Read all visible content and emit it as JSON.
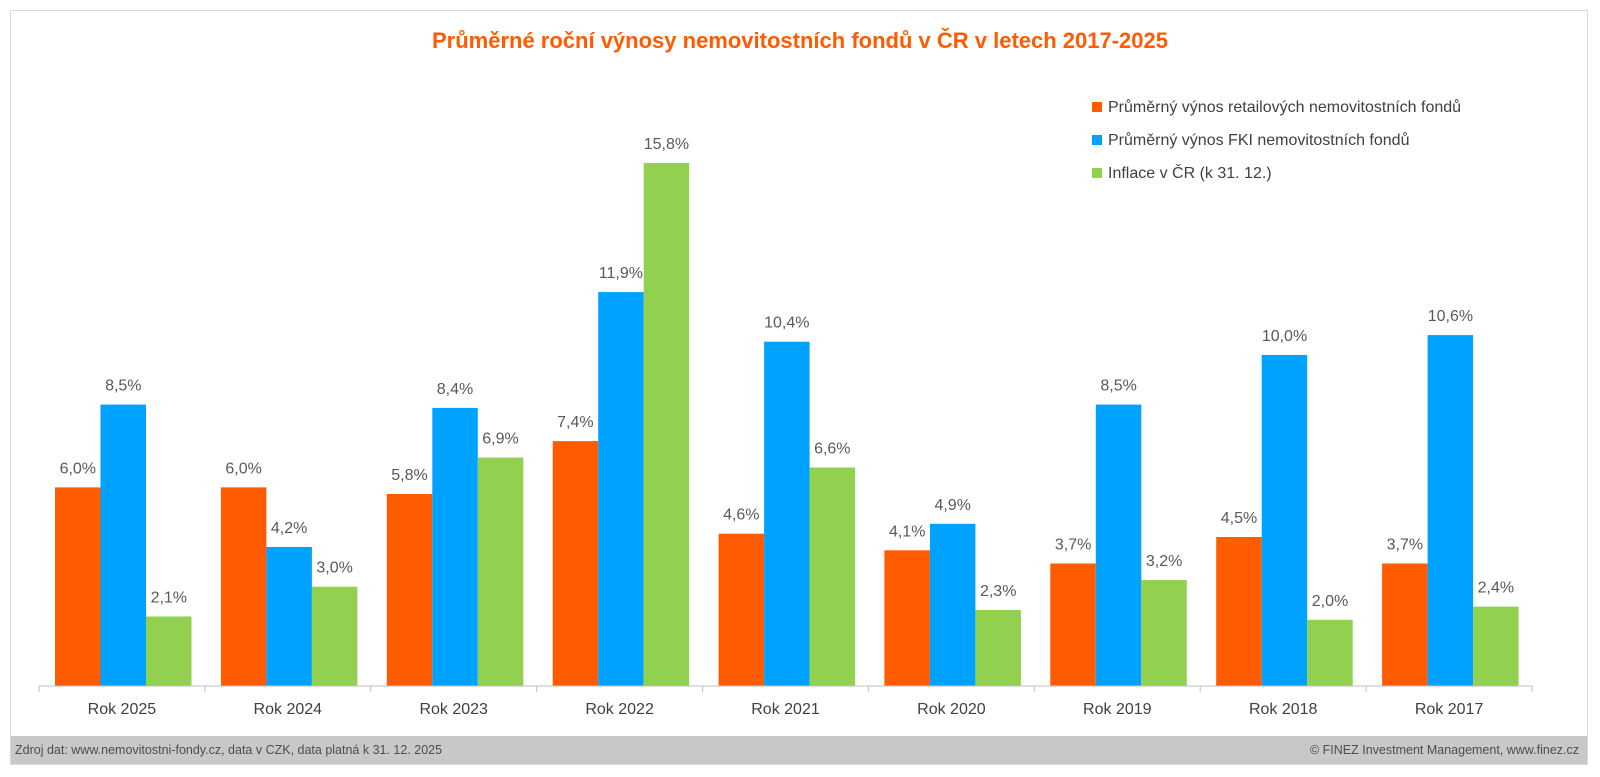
{
  "chart_data": {
    "type": "bar",
    "title": "Průměrné roční výnosy nemovitostních fondů v ČR v letech 2017-2025",
    "xlabel": "",
    "ylabel": "",
    "ylim": [
      0,
      16.5
    ],
    "grid": false,
    "legend_position": "top-right",
    "categories": [
      "Rok 2025",
      "Rok 2024",
      "Rok 2023",
      "Rok 2022",
      "Rok 2021",
      "Rok 2020",
      "Rok 2019",
      "Rok 2018",
      "Rok 2017"
    ],
    "series": [
      {
        "name": "Průměrný výnos retailových nemovitostních fondů",
        "color": "#ff5b00",
        "values": [
          6.0,
          6.0,
          5.8,
          7.4,
          4.6,
          4.1,
          3.7,
          4.5,
          3.7
        ],
        "labels": [
          "6,0%",
          "6,0%",
          "5,8%",
          "7,4%",
          "4,6%",
          "4,1%",
          "3,7%",
          "4,5%",
          "3,7%"
        ]
      },
      {
        "name": "Průměrný výnos FKI nemovitostních fondů",
        "color": "#00a2ff",
        "values": [
          8.5,
          4.2,
          8.4,
          11.9,
          10.4,
          4.9,
          8.5,
          10.0,
          10.6
        ],
        "labels": [
          "8,5%",
          "4,2%",
          "8,4%",
          "11,9%",
          "10,4%",
          "4,9%",
          "8,5%",
          "10,0%",
          "10,6%"
        ]
      },
      {
        "name": "Inflace v ČR (k 31. 12.)",
        "color": "#92d050",
        "values": [
          2.1,
          3.0,
          6.9,
          15.8,
          6.6,
          2.3,
          3.2,
          2.0,
          2.4
        ],
        "labels": [
          "2,1%",
          "3,0%",
          "6,9%",
          "15,8%",
          "6,6%",
          "2,3%",
          "3,2%",
          "2,0%",
          "2,4%"
        ]
      }
    ]
  },
  "footer": {
    "source": "Zdroj dat: www.nemovitostni-fondy.cz, data v CZK, data platná k 31. 12. 2025",
    "copyright": "© FINEZ Investment Management, www.finez.cz"
  }
}
